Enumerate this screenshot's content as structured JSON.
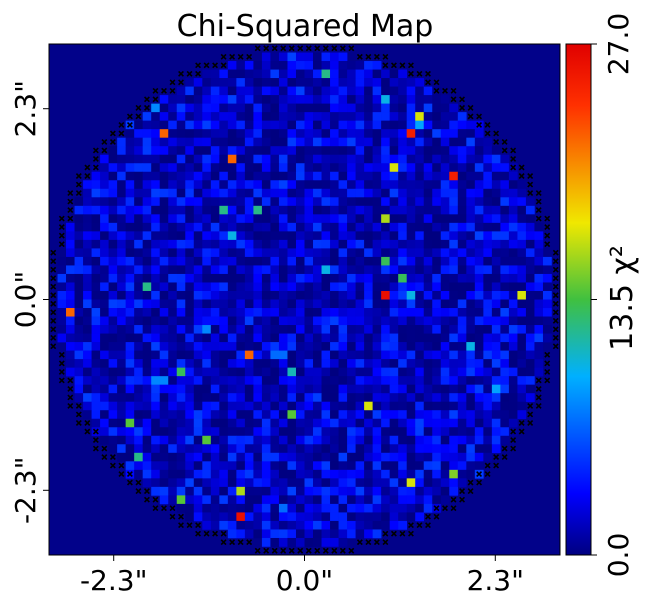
{
  "chart_data": {
    "type": "heatmap",
    "title": "Chi-Squared Map",
    "x_tick_labels": [
      "-2.3\"",
      "0.0\"",
      "2.3\""
    ],
    "y_tick_labels": [
      "-2.3\"",
      "0.0\"",
      "2.3\""
    ],
    "x_ticks": [
      -2.3,
      0.0,
      2.3
    ],
    "y_ticks": [
      -2.3,
      0.0,
      2.3
    ],
    "xlim": [
      -3.08,
      3.08
    ],
    "ylim": [
      -3.08,
      3.08
    ],
    "colorbar": {
      "label": "χ²",
      "label_text": "13.5 χ²",
      "ticks": [
        0.0,
        13.5,
        27.0
      ],
      "tick_labels": [
        "0.0",
        "",
        "27.0"
      ],
      "range": [
        0.0,
        27.0
      ],
      "colormap": "jet"
    },
    "grid": {
      "rows": 60,
      "cols": 60,
      "circle_radius_cells": 29,
      "background_value": 0
    },
    "hot_pixels": [
      {
        "row": 3,
        "col": 32,
        "value": 12
      },
      {
        "row": 6,
        "col": 39,
        "value": 10
      },
      {
        "row": 8,
        "col": 43,
        "value": 17
      },
      {
        "row": 7,
        "col": 12,
        "value": 8
      },
      {
        "row": 10,
        "col": 13,
        "value": 22
      },
      {
        "row": 10,
        "col": 42,
        "value": 25
      },
      {
        "row": 9,
        "col": 43,
        "value": 9
      },
      {
        "row": 13,
        "col": 21,
        "value": 22
      },
      {
        "row": 14,
        "col": 40,
        "value": 17
      },
      {
        "row": 15,
        "col": 47,
        "value": 25
      },
      {
        "row": 19,
        "col": 20,
        "value": 12
      },
      {
        "row": 19,
        "col": 24,
        "value": 12
      },
      {
        "row": 20,
        "col": 39,
        "value": 16
      },
      {
        "row": 22,
        "col": 21,
        "value": 10
      },
      {
        "row": 25,
        "col": 39,
        "value": 13
      },
      {
        "row": 26,
        "col": 32,
        "value": 10
      },
      {
        "row": 27,
        "col": 41,
        "value": 13
      },
      {
        "row": 28,
        "col": 11,
        "value": 12
      },
      {
        "row": 29,
        "col": 42,
        "value": 10
      },
      {
        "row": 29,
        "col": 39,
        "value": 26
      },
      {
        "row": 29,
        "col": 55,
        "value": 17
      },
      {
        "row": 31,
        "col": 2,
        "value": 22
      },
      {
        "row": 33,
        "col": 18,
        "value": 8
      },
      {
        "row": 35,
        "col": 49,
        "value": 10
      },
      {
        "row": 36,
        "col": 23,
        "value": 22
      },
      {
        "row": 36,
        "col": 26,
        "value": 7
      },
      {
        "row": 36,
        "col": 27,
        "value": 7
      },
      {
        "row": 38,
        "col": 15,
        "value": 13
      },
      {
        "row": 38,
        "col": 28,
        "value": 11
      },
      {
        "row": 39,
        "col": 13,
        "value": 8
      },
      {
        "row": 39,
        "col": 12,
        "value": 8
      },
      {
        "row": 40,
        "col": 52,
        "value": 9
      },
      {
        "row": 42,
        "col": 37,
        "value": 17
      },
      {
        "row": 43,
        "col": 28,
        "value": 14
      },
      {
        "row": 44,
        "col": 9,
        "value": 14
      },
      {
        "row": 46,
        "col": 18,
        "value": 14
      },
      {
        "row": 50,
        "col": 47,
        "value": 15
      },
      {
        "row": 51,
        "col": 42,
        "value": 17
      },
      {
        "row": 52,
        "col": 22,
        "value": 16
      },
      {
        "row": 53,
        "col": 15,
        "value": 14
      },
      {
        "row": 55,
        "col": 22,
        "value": 26
      },
      {
        "row": 54,
        "col": 27,
        "value": 7
      },
      {
        "row": 48,
        "col": 10,
        "value": 12
      }
    ],
    "grid_lines": false,
    "masked_edge_marker": "x"
  }
}
